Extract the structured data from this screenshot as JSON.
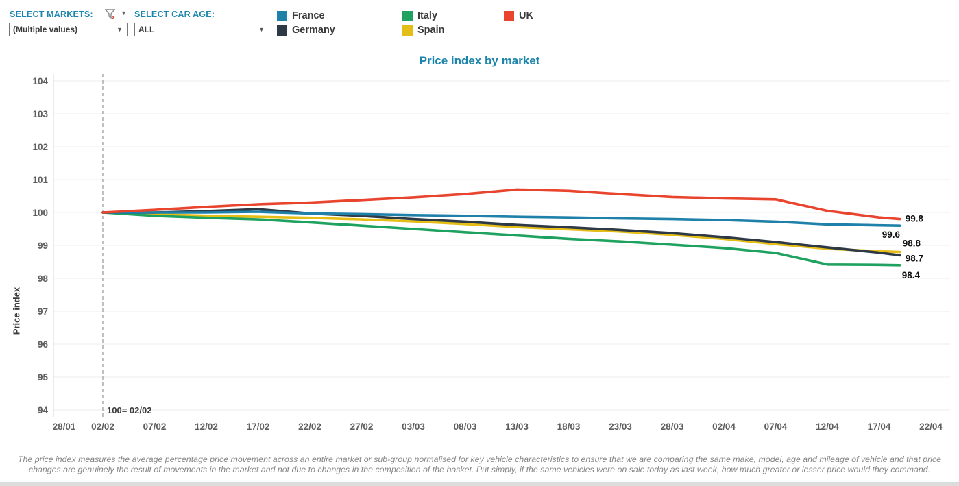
{
  "filters": {
    "markets": {
      "label": "SELECT MARKETS:",
      "value": "(Multiple values)"
    },
    "car_age": {
      "label": "SELECT CAR AGE:",
      "value": "ALL"
    }
  },
  "title": "Price index by market",
  "legend_order": [
    "France",
    "Germany",
    "Italy",
    "Spain",
    "UK"
  ],
  "chart_data": {
    "type": "line",
    "title": "Price index by market",
    "xlabel": "",
    "ylabel": "Price index",
    "ylim": [
      94,
      104
    ],
    "grid": true,
    "legend_position": "top",
    "y_ticks": [
      104,
      103,
      102,
      101,
      100,
      99,
      98,
      97,
      96,
      95,
      94
    ],
    "x_tick_labels": [
      "28/01",
      "02/02",
      "07/02",
      "12/02",
      "17/02",
      "22/02",
      "27/02",
      "03/03",
      "08/03",
      "13/03",
      "18/03",
      "23/03",
      "28/03",
      "02/04",
      "07/04",
      "12/04",
      "17/04",
      "22/04"
    ],
    "x_days": [
      5,
      10,
      15,
      20,
      25,
      30,
      35,
      40,
      45,
      50,
      55,
      60,
      65,
      70,
      75,
      80,
      82
    ],
    "reference_line": {
      "at_label": "02/02",
      "annotation": "100= 02/02"
    },
    "series": [
      {
        "name": "Spain",
        "color": "#e5bd17",
        "end_label": "98.8",
        "values": [
          100.0,
          99.95,
          99.9,
          99.87,
          99.84,
          99.79,
          99.73,
          99.65,
          99.56,
          99.49,
          99.42,
          99.32,
          99.2,
          99.04,
          98.9,
          98.82,
          98.8
        ]
      },
      {
        "name": "Italy",
        "color": "#1fa25f",
        "end_label": "98.4",
        "values": [
          100.0,
          99.9,
          99.84,
          99.79,
          99.7,
          99.6,
          99.5,
          99.4,
          99.3,
          99.2,
          99.12,
          99.02,
          98.92,
          98.77,
          98.42,
          98.41,
          98.4
        ]
      },
      {
        "name": "Germany",
        "color": "#2d3a46",
        "end_label": "98.7",
        "values": [
          100.0,
          100.0,
          100.04,
          100.1,
          99.97,
          99.9,
          99.8,
          99.72,
          99.62,
          99.55,
          99.47,
          99.37,
          99.25,
          99.1,
          98.94,
          98.78,
          98.7
        ]
      },
      {
        "name": "France",
        "color": "#1f81a9",
        "end_label": "99.6",
        "values": [
          100.0,
          100.0,
          100.0,
          100.02,
          99.97,
          99.95,
          99.92,
          99.9,
          99.87,
          99.85,
          99.82,
          99.8,
          99.77,
          99.72,
          99.64,
          99.61,
          99.6
        ]
      },
      {
        "name": "UK",
        "color": "#e8442e",
        "end_label": "99.8",
        "values": [
          100.0,
          100.08,
          100.17,
          100.25,
          100.3,
          100.38,
          100.46,
          100.56,
          100.7,
          100.66,
          100.56,
          100.47,
          100.43,
          100.4,
          100.05,
          99.85,
          99.8
        ]
      }
    ]
  },
  "footer": {
    "text": "The price index measures the average percentage price movement across an entire market or sub-group normalised for key vehicle characteristics to ensure that we are comparing the same make, model, age and mileage of vehicle and that price changes are genuinely the result of movements in the market and not due to changes in the composition of the basket. Put simply, if the same vehicles were on sale today as last week, how much greater or lesser price would they command."
  }
}
